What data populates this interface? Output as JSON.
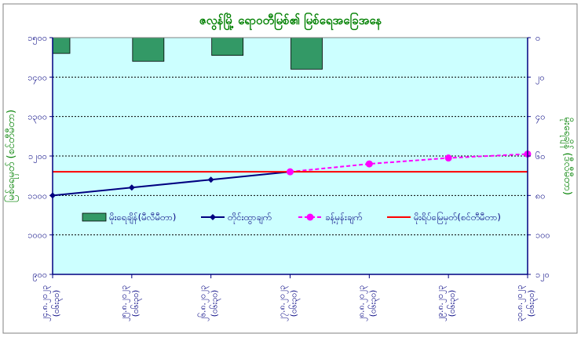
{
  "chart_data": {
    "type": "combo",
    "title": "ဇလွန်မြို့ ရောဝတီမြစ်၏ မြစ်ရေအခြေအနေ",
    "ylabel_left": "မြစ်ရေမှတ် (စင်တီမီတာ)",
    "ylabel_right": "မိုးရေချိန် (ဒီလီမီတာ)",
    "y_left": {
      "min": 900,
      "max": 1500,
      "reversed": false,
      "ticks": [
        "၉၀၀",
        "၁၀၀၀",
        "၁၁၀၀",
        "၁၂၀၀",
        "၁၃၀၀",
        "၁၄၀၀",
        "၁၅၀၀"
      ]
    },
    "y_right": {
      "min": 0,
      "max": 120,
      "reversed": true,
      "ticks": [
        "၀",
        "၂၀",
        "၄၀",
        "၆၀",
        "၈၀",
        "၁၀၀",
        "၁၂၀"
      ]
    },
    "categories": [
      [
        "၂၄.၈.၂၀၂၃",
        "(၀၆း၃၀)"
      ],
      [
        "၂၅.၈.၂၀၂၃",
        "(၀၆း၃၀)"
      ],
      [
        "၂၆.၈.၂၀၂၃",
        "(၀၆း၃၀)"
      ],
      [
        "၂၇.၈.၂၀၂၃",
        "(၀၆း၃၀)"
      ],
      [
        "၂၈.၈.၂၀၂၃",
        "(၀၆း၃၀)"
      ],
      [
        "၂၉.၈.၂၀၂၃",
        "(၀၆း၃၀)"
      ],
      [
        "၃၀.၈.၂၀၂၃",
        "(၀၆း၃၀)"
      ]
    ],
    "series": [
      {
        "name": "မိုးရေချိန်(မီလီမီတာ)",
        "kind": "bar",
        "axis": "right",
        "color": "#339966",
        "values": [
          8,
          12,
          9,
          16,
          null,
          null,
          null
        ]
      },
      {
        "name": "တိုင်းထွာချက်",
        "kind": "line",
        "axis": "left",
        "color": "#000080",
        "values": [
          1100,
          1120,
          1140,
          1160,
          null,
          null,
          null
        ]
      },
      {
        "name": "ခန့်မှန်းချက်",
        "kind": "line-dashed",
        "axis": "left",
        "color": "#ff00ff",
        "values": [
          null,
          null,
          null,
          1160,
          1180,
          1195,
          1205
        ]
      },
      {
        "name": "မိုးရိပ်မြေမှတ်(စင်တီမီတာ)",
        "kind": "hline",
        "axis": "left",
        "color": "#ff0000",
        "value": 1160
      }
    ],
    "grid": true,
    "legend_position": "bottom-inside"
  }
}
